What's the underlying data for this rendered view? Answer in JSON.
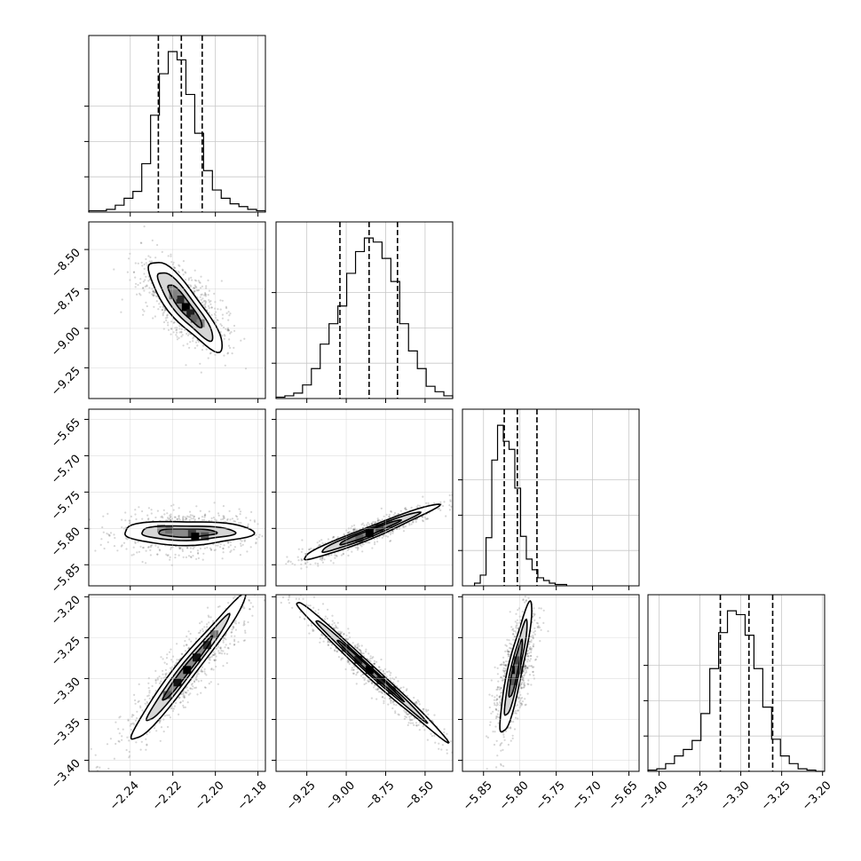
{
  "chart_data": {
    "type": "corner",
    "parameters": [
      {
        "id": "p1",
        "range": [
          -2.2595,
          -2.1765
        ],
        "ticks": [
          "-2.24",
          "-2.22",
          "-2.20",
          "-2.18"
        ],
        "tick_values": [
          -2.24,
          -2.22,
          -2.2,
          -2.18
        ],
        "quantiles": [
          -2.2268,
          -2.216,
          -2.2062
        ],
        "histogram": {
          "edges_start": -2.2595,
          "bin_width": 0.00415,
          "counts": [
            1,
            1,
            2,
            5,
            10,
            15,
            35,
            70,
            100,
            116,
            110,
            85,
            57,
            30,
            16,
            10,
            6,
            4,
            2,
            1
          ]
        }
      },
      {
        "id": "p2",
        "range": [
          -9.445,
          -8.325
        ],
        "ticks": [
          "-9.25",
          "-9.00",
          "-8.75",
          "-8.50"
        ],
        "tick_values": [
          -9.25,
          -9.0,
          -8.75,
          -8.5
        ],
        "quantiles": [
          -9.04,
          -8.855,
          -8.675
        ],
        "histogram": {
          "edges_start": -9.445,
          "bin_width": 0.056,
          "counts": [
            1,
            2,
            4,
            10,
            22,
            40,
            55,
            68,
            92,
            108,
            118,
            115,
            103,
            86,
            55,
            35,
            22,
            9,
            5,
            2
          ]
        }
      },
      {
        "id": "p3",
        "range": [
          -5.879,
          -5.636
        ],
        "ticks": [
          "-5.85",
          "-5.80",
          "-5.75",
          "-5.70",
          "-5.65"
        ],
        "tick_values": [
          -5.85,
          -5.8,
          -5.75,
          -5.7,
          -5.65
        ],
        "quantiles": [
          -5.8215,
          -5.8035,
          -5.7765
        ],
        "histogram": {
          "edges_start": -5.8624,
          "bin_width": 0.00792,
          "counts": [
            2,
            8,
            36,
            94,
            120,
            108,
            102,
            73,
            37,
            20,
            12,
            6,
            4,
            2,
            1,
            1
          ]
        }
      },
      {
        "id": "p4",
        "range": [
          -3.4135,
          -3.1975
        ],
        "ticks": [
          "-3.40",
          "-3.35",
          "-3.30",
          "-3.25",
          "-3.20"
        ],
        "tick_values": [
          -3.4,
          -3.35,
          -3.3,
          -3.25,
          -3.2
        ],
        "quantiles": [
          -3.325,
          -3.29,
          -3.261
        ],
        "histogram": {
          "edges_start": -3.4135,
          "bin_width": 0.0108,
          "counts": [
            1,
            2,
            6,
            12,
            17,
            24,
            45,
            80,
            108,
            125,
            122,
            106,
            80,
            50,
            25,
            12,
            6,
            2,
            1,
            0
          ]
        }
      }
    ],
    "pairs": [
      {
        "x": "p1",
        "y": "p2",
        "center": [
          -2.2145,
          -8.855
        ],
        "major_dir": [
          0.00755,
          -0.1345
        ],
        "minor_dir": [
          0.0047,
          0.022
        ],
        "contours": [
          [
            1.0,
            0.55
          ],
          [
            1.6,
            1.0
          ],
          [
            2.1,
            1.5
          ]
        ],
        "hot_cells": [
          [
            -0.3,
            0.0,
            0.8
          ],
          [
            0.05,
            0.0,
            1.0
          ],
          [
            0.35,
            0.0,
            0.85
          ],
          [
            0.6,
            0.0,
            0.5
          ],
          [
            -0.55,
            -0.3,
            0.35
          ],
          [
            0.85,
            0.2,
            0.35
          ]
        ]
      },
      {
        "x": "p1",
        "y": "p3",
        "center": [
          -2.2135,
          -5.806
        ],
        "major_dir": [
          0.0152,
          0.0
        ],
        "minor_dir": [
          0.0,
          0.0105
        ],
        "contours": [
          [
            0.9,
            0.55
          ],
          [
            1.45,
            0.95
          ],
          [
            2.0,
            1.55
          ]
        ],
        "hot_cells": [
          [
            -0.8,
            0.6,
            0.3
          ],
          [
            -0.55,
            0.5,
            0.45
          ],
          [
            0.15,
            -0.1,
            0.7
          ],
          [
            0.25,
            -0.45,
            1.0
          ],
          [
            0.55,
            -0.4,
            0.6
          ]
        ]
      },
      {
        "x": "p2",
        "y": "p3",
        "center": [
          -8.855,
          -5.806
        ],
        "major_dir": [
          0.215,
          0.0185
        ],
        "minor_dir": [
          0.0,
          0.0055
        ],
        "contours": [
          [
            0.9,
            0.65
          ],
          [
            1.45,
            1.1
          ],
          [
            2.0,
            1.6
          ]
        ],
        "hot_cells": [
          [
            0.0,
            0.0,
            1.0
          ],
          [
            0.3,
            0.3,
            0.65
          ],
          [
            -0.3,
            -0.3,
            0.5
          ],
          [
            0.55,
            0.5,
            0.35
          ]
        ]
      },
      {
        "x": "p1",
        "y": "p4",
        "center": [
          -2.2135,
          -3.289
        ],
        "major_dir": [
          0.0128,
          0.0435
        ],
        "minor_dir": [
          0.0045,
          0.0
        ],
        "contours": [
          [
            0.9,
            0.45
          ],
          [
            1.5,
            0.8
          ],
          [
            2.05,
            1.3
          ]
        ],
        "hot_cells": [
          [
            0.0,
            0.0,
            1.0
          ],
          [
            0.35,
            0.0,
            0.9
          ],
          [
            -0.35,
            0.0,
            0.9
          ],
          [
            0.7,
            0.1,
            0.75
          ],
          [
            -0.7,
            -0.1,
            0.5
          ],
          [
            1.0,
            0.0,
            0.4
          ]
        ]
      },
      {
        "x": "p2",
        "y": "p4",
        "center": [
          -8.855,
          -3.289
        ],
        "major_dir": [
          0.235,
          -0.0415
        ],
        "minor_dir": [
          0.0,
          0.007
        ],
        "contours": [
          [
            0.9,
            0.45
          ],
          [
            1.5,
            0.8
          ],
          [
            2.05,
            1.35
          ]
        ],
        "hot_cells": [
          [
            0.0,
            0.0,
            1.0
          ],
          [
            -0.3,
            0.0,
            0.8
          ],
          [
            0.3,
            0.0,
            0.8
          ],
          [
            -0.65,
            0.0,
            0.5
          ],
          [
            0.6,
            0.0,
            0.6
          ]
        ]
      },
      {
        "x": "p3",
        "y": "p4",
        "center": [
          -5.806,
          -3.289
        ],
        "major_dir": [
          0.0095,
          0.039
        ],
        "minor_dir": [
          0.0075,
          0.0
        ],
        "contours": [
          [
            0.9,
            0.5
          ],
          [
            1.5,
            0.85
          ],
          [
            2.05,
            1.35
          ]
        ],
        "hot_cells": [
          [
            0.0,
            0.0,
            1.0
          ],
          [
            0.3,
            0.0,
            0.65
          ],
          [
            -0.35,
            0.0,
            0.55
          ],
          [
            0.0,
            0.5,
            0.45
          ]
        ]
      }
    ],
    "grid": true,
    "quantile_lines": "dashed"
  }
}
